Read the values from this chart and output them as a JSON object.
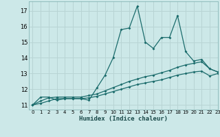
{
  "xlabel": "Humidex (Indice chaleur)",
  "bg_color": "#cce8e8",
  "grid_color": "#b8d4d4",
  "line_color": "#1a6b6b",
  "xlim": [
    -0.5,
    23
  ],
  "ylim": [
    10.7,
    17.6
  ],
  "yticks": [
    11,
    12,
    13,
    14,
    15,
    16,
    17
  ],
  "xticks": [
    0,
    1,
    2,
    3,
    4,
    5,
    6,
    7,
    8,
    9,
    10,
    11,
    12,
    13,
    14,
    15,
    16,
    17,
    18,
    19,
    20,
    21,
    22,
    23
  ],
  "series1_x": [
    0,
    1,
    2,
    3,
    4,
    5,
    6,
    7,
    8,
    9,
    10,
    11,
    12,
    13,
    14,
    15,
    16,
    17,
    18,
    19,
    20,
    21,
    22,
    23
  ],
  "series1_y": [
    11.0,
    11.5,
    11.5,
    11.3,
    11.4,
    11.4,
    11.4,
    11.3,
    12.1,
    12.9,
    14.0,
    15.8,
    15.9,
    17.3,
    15.0,
    14.6,
    15.3,
    15.3,
    16.7,
    14.4,
    13.8,
    13.9,
    13.3,
    13.1
  ],
  "series2_x": [
    0,
    1,
    2,
    3,
    4,
    5,
    6,
    7,
    8,
    9,
    10,
    11,
    12,
    13,
    14,
    15,
    16,
    17,
    18,
    19,
    20,
    21,
    22,
    23
  ],
  "series2_y": [
    11.0,
    11.25,
    11.45,
    11.5,
    11.5,
    11.5,
    11.5,
    11.6,
    11.7,
    11.9,
    12.1,
    12.3,
    12.5,
    12.65,
    12.8,
    12.9,
    13.05,
    13.2,
    13.4,
    13.55,
    13.65,
    13.75,
    13.3,
    13.1
  ],
  "series3_x": [
    0,
    1,
    2,
    3,
    4,
    5,
    6,
    7,
    8,
    9,
    10,
    11,
    12,
    13,
    14,
    15,
    16,
    17,
    18,
    19,
    20,
    21,
    22,
    23
  ],
  "series3_y": [
    11.0,
    11.1,
    11.25,
    11.4,
    11.4,
    11.4,
    11.4,
    11.45,
    11.55,
    11.7,
    11.85,
    12.0,
    12.15,
    12.3,
    12.4,
    12.5,
    12.6,
    12.75,
    12.9,
    13.0,
    13.1,
    13.15,
    12.85,
    13.0
  ]
}
